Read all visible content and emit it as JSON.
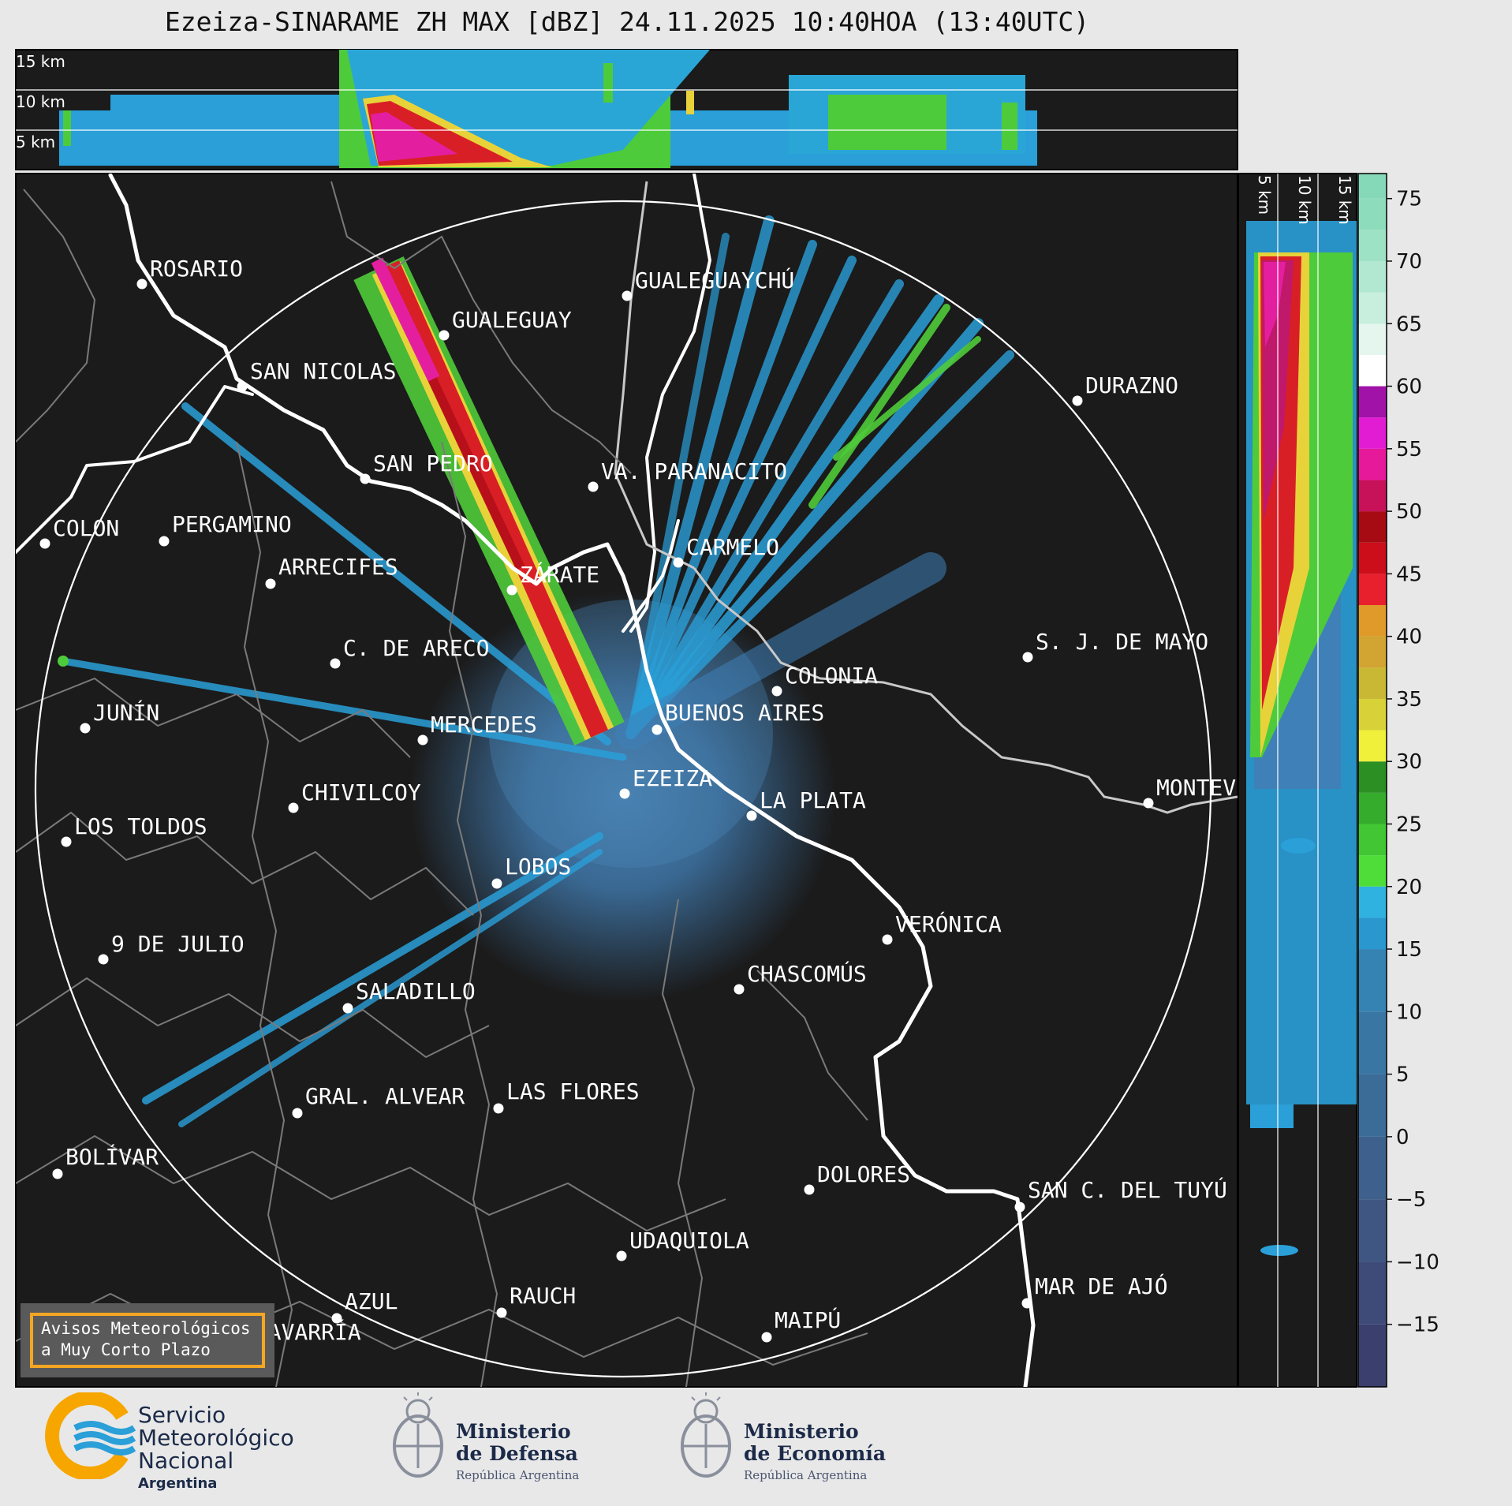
{
  "title": "Ezeiza-SINARAME ZH MAX [dBZ] 24.11.2025 10:40HOA (13:40UTC)",
  "top_profile": {
    "altitude_labels": [
      "15 km",
      "10 km",
      "5 km"
    ]
  },
  "side_profile": {
    "altitude_labels": [
      "5 km",
      "10 km",
      "15 km"
    ]
  },
  "colorbar": {
    "unit": "dBZ",
    "ticks": [
      "75",
      "70",
      "65",
      "60",
      "55",
      "50",
      "45",
      "40",
      "35",
      "30",
      "25",
      "20",
      "15",
      "10",
      "5",
      "0",
      "−5",
      "−10",
      "−15"
    ],
    "tick_values": [
      75,
      70,
      65,
      60,
      55,
      50,
      45,
      40,
      35,
      30,
      25,
      20,
      15,
      10,
      5,
      0,
      -5,
      -10,
      -15
    ],
    "range": [
      -20,
      77
    ]
  },
  "map": {
    "radar_site": "EZEIZA",
    "cities": [
      {
        "name": "ROSARIO"
      },
      {
        "name": "GUALEGUAYCHÚ"
      },
      {
        "name": "GUALEGUAY"
      },
      {
        "name": "SAN NICOLAS"
      },
      {
        "name": "DURAZNO"
      },
      {
        "name": "SAN PEDRO"
      },
      {
        "name": "VA. PARANACITO"
      },
      {
        "name": "COLON"
      },
      {
        "name": "PERGAMINO"
      },
      {
        "name": "CARMELO"
      },
      {
        "name": "ARRECIFES"
      },
      {
        "name": "ZÁRATE"
      },
      {
        "name": "S. J. DE MAYO"
      },
      {
        "name": "C. DE ARECO"
      },
      {
        "name": "COLONIA"
      },
      {
        "name": "JUNÍN"
      },
      {
        "name": "BUENOS AIRES"
      },
      {
        "name": "MERCEDES"
      },
      {
        "name": "MONTEVIDEO"
      },
      {
        "name": "EZEIZA"
      },
      {
        "name": "CHIVILCOY"
      },
      {
        "name": "LA PLATA"
      },
      {
        "name": "LOS TOLDOS"
      },
      {
        "name": "LOBOS"
      },
      {
        "name": "VERÓNICA"
      },
      {
        "name": "9 DE JULIO"
      },
      {
        "name": "CHASCOMÚS"
      },
      {
        "name": "SALADILLO"
      },
      {
        "name": "GRAL. ALVEAR"
      },
      {
        "name": "LAS FLORES"
      },
      {
        "name": "BOLÍVAR"
      },
      {
        "name": "DOLORES"
      },
      {
        "name": "SAN C. DEL TUYÚ"
      },
      {
        "name": "UDAQUIOLA"
      },
      {
        "name": "MAR DE AJÓ"
      },
      {
        "name": "AZUL"
      },
      {
        "name": "RAUCH"
      },
      {
        "name": "OLAVARRÍA"
      },
      {
        "name": "MAIPÚ"
      }
    ]
  },
  "notice": {
    "line1": "Avisos Meteorológicos",
    "line2": "a Muy Corto Plazo"
  },
  "logos": {
    "smn": {
      "line1": "Servicio",
      "line2": "Meteorológico",
      "line3": "Nacional",
      "line4": "Argentina"
    },
    "defensa": {
      "line1": "Ministerio",
      "line2": "de Defensa",
      "line3": "República Argentina"
    },
    "economia": {
      "line1": "Ministerio",
      "line2": "de Economía",
      "line3": "República Argentina"
    }
  },
  "colors": {
    "panel_bg": "#1b1b1b",
    "page_bg": "#e8e8e8",
    "coast": "#ffffff",
    "borders": "#8a8a8a",
    "notice_border": "#f5a623",
    "smn_blue": "#2a9fd8",
    "smn_orange": "#f7a600"
  }
}
